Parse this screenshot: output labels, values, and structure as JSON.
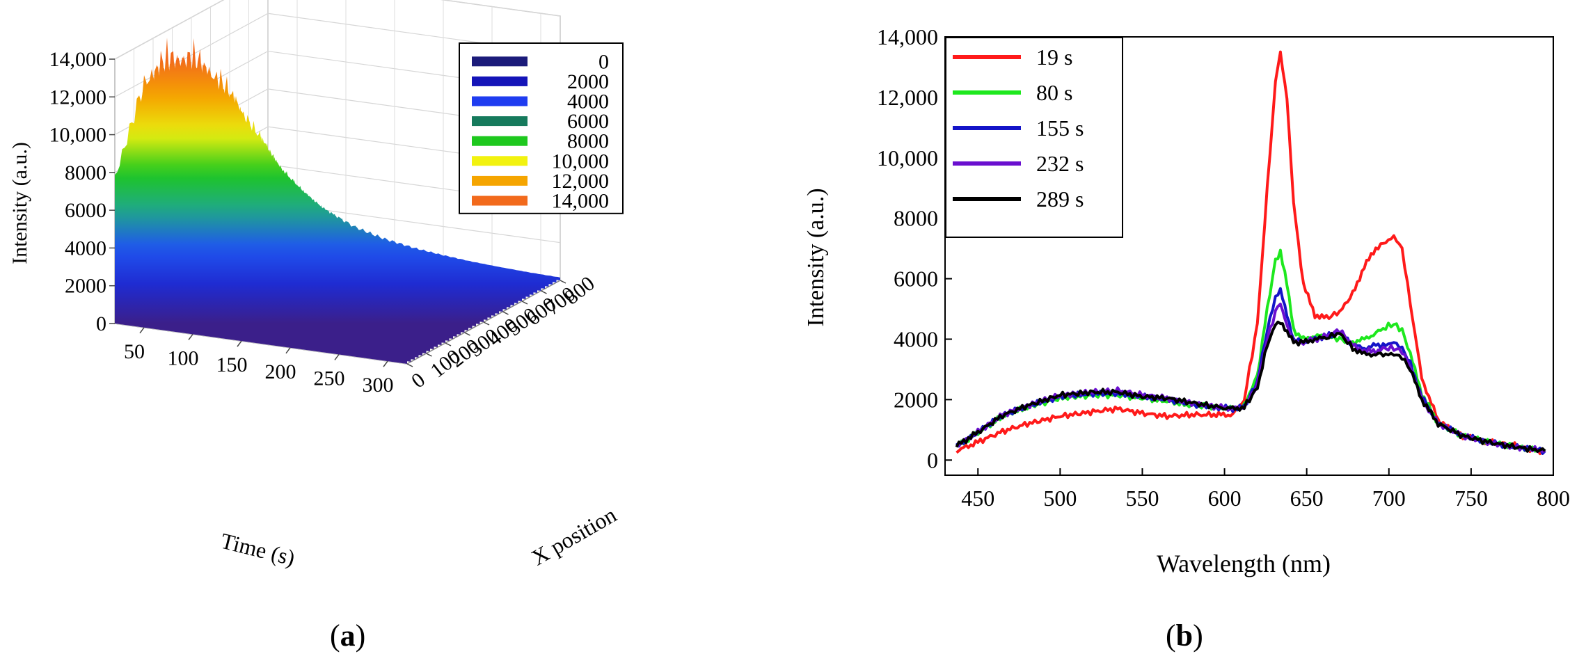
{
  "figure": {
    "panel_a_label": "a",
    "panel_b_label": "b"
  },
  "chart_data": [
    {
      "type": "surface",
      "panel": "a",
      "zlabel": "Intensity (a.u.)",
      "xlabel": "Time (s)",
      "ylabel": "X position",
      "z_ticks": [
        "0",
        "2000",
        "4000",
        "6000",
        "8000",
        "10,000",
        "12,000",
        "14,000"
      ],
      "x_ticks": [
        "50",
        "100",
        "150",
        "200",
        "250",
        "300"
      ],
      "y_ticks": [
        "0",
        "100",
        "200",
        "300",
        "400",
        "500",
        "600",
        "700",
        "800"
      ],
      "zlim": [
        0,
        14000
      ],
      "xlim": [
        20,
        320
      ],
      "ylim": [
        0,
        800
      ],
      "legend": {
        "placement": "top-right",
        "entries": [
          {
            "label": "0",
            "color": "#1b1b7a"
          },
          {
            "label": "2000",
            "color": "#1414b8"
          },
          {
            "label": "4000",
            "color": "#1f3cf0"
          },
          {
            "label": "6000",
            "color": "#167a5c"
          },
          {
            "label": "8000",
            "color": "#1ec81e"
          },
          {
            "label": "10,000",
            "color": "#f2f20f"
          },
          {
            "label": "12,000",
            "color": "#f5a500"
          },
          {
            "label": "14,000",
            "color": "#f26a1c"
          }
        ]
      },
      "surface_profile": {
        "time": [
          20,
          50,
          80,
          110,
          140,
          170,
          200,
          230,
          260,
          290,
          320
        ],
        "peak_intensity": [
          8000,
          13500,
          9000,
          6000,
          4200,
          3000,
          2200,
          1600,
          1200,
          900,
          700
        ]
      }
    },
    {
      "type": "line",
      "panel": "b",
      "xlabel": "Wavelength (nm)",
      "ylabel": "Intensity (a.u.)",
      "xlim": [
        430,
        800
      ],
      "ylim": [
        -500,
        14000
      ],
      "x_ticks": [
        "450",
        "500",
        "550",
        "600",
        "650",
        "700",
        "750",
        "800"
      ],
      "y_ticks": [
        "0",
        "2000",
        "4000",
        "6000",
        "8000",
        "10,000",
        "12,000",
        "14,000"
      ],
      "legend": "top-left",
      "x": [
        437,
        450,
        465,
        480,
        500,
        520,
        535,
        550,
        565,
        580,
        595,
        605,
        612,
        620,
        626,
        631,
        634,
        638,
        642,
        648,
        655,
        662,
        670,
        678,
        685,
        692,
        698,
        703,
        708,
        713,
        720,
        730,
        745,
        760,
        775,
        795
      ],
      "series": [
        {
          "name": "19 s",
          "color": "#ff1a1a",
          "values": [
            300,
            600,
            950,
            1200,
            1450,
            1600,
            1700,
            1550,
            1450,
            1500,
            1500,
            1500,
            2000,
            4500,
            9000,
            12500,
            13500,
            12000,
            8500,
            5800,
            4800,
            4700,
            4900,
            5500,
            6400,
            7000,
            7200,
            7400,
            7000,
            5200,
            2700,
            1300,
            800,
            600,
            500,
            250
          ]
        },
        {
          "name": "80 s",
          "color": "#1ee81e",
          "values": [
            450,
            900,
            1450,
            1750,
            2050,
            2150,
            2150,
            2050,
            1950,
            1800,
            1750,
            1700,
            1800,
            2800,
            5000,
            6600,
            6900,
            5800,
            4300,
            4000,
            4100,
            4100,
            4000,
            3900,
            4000,
            4200,
            4400,
            4500,
            4300,
            3500,
            2200,
            1200,
            800,
            600,
            450,
            300
          ]
        },
        {
          "name": "155 s",
          "color": "#1414c8",
          "values": [
            470,
            920,
            1480,
            1780,
            2100,
            2200,
            2200,
            2100,
            2000,
            1850,
            1750,
            1700,
            1750,
            2600,
            4300,
            5400,
            5600,
            4800,
            4000,
            3900,
            4000,
            4100,
            4200,
            3800,
            3700,
            3800,
            3800,
            3900,
            3700,
            3200,
            2100,
            1200,
            800,
            600,
            450,
            300
          ]
        },
        {
          "name": "232 s",
          "color": "#6a0fcf",
          "values": [
            480,
            930,
            1500,
            1800,
            2150,
            2250,
            2300,
            2150,
            2050,
            1900,
            1760,
            1700,
            1750,
            2500,
            4000,
            4900,
            5200,
            4500,
            3900,
            3900,
            4000,
            4100,
            4300,
            3800,
            3600,
            3600,
            3700,
            3700,
            3600,
            3100,
            2000,
            1200,
            800,
            600,
            450,
            300
          ]
        },
        {
          "name": "289 s",
          "color": "#000000",
          "values": [
            470,
            920,
            1480,
            1800,
            2150,
            2250,
            2250,
            2100,
            2050,
            1900,
            1760,
            1700,
            1750,
            2400,
            3800,
            4500,
            4600,
            4200,
            3900,
            3900,
            4000,
            4050,
            4200,
            3700,
            3500,
            3500,
            3500,
            3500,
            3400,
            3000,
            2000,
            1200,
            800,
            600,
            450,
            300
          ]
        }
      ]
    }
  ]
}
